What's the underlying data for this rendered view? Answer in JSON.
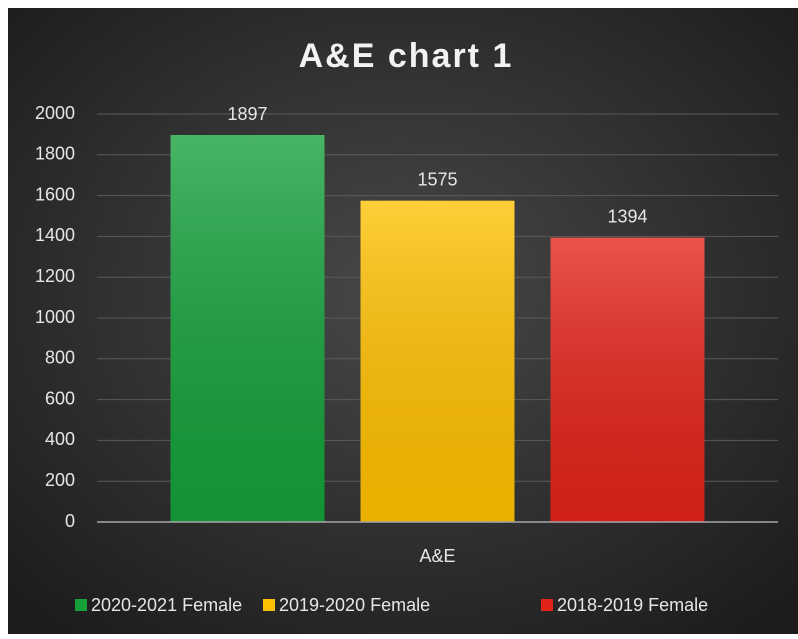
{
  "chart_data": {
    "type": "bar",
    "title": "A&E chart 1",
    "categories": [
      "A&E"
    ],
    "series": [
      {
        "name": "2020-2021 Female",
        "color": "#15a03a",
        "values": [
          1897
        ]
      },
      {
        "name": "2019-2020 Female",
        "color": "#ffc000",
        "values": [
          1575
        ]
      },
      {
        "name": "2018-2019 Female",
        "color": "#e2231a",
        "values": [
          1394
        ]
      }
    ],
    "ylim": [
      0,
      2000
    ],
    "yticks": [
      0,
      200,
      400,
      600,
      800,
      1000,
      1200,
      1400,
      1600,
      1800,
      2000
    ],
    "grid": true,
    "legend": "bottom"
  }
}
